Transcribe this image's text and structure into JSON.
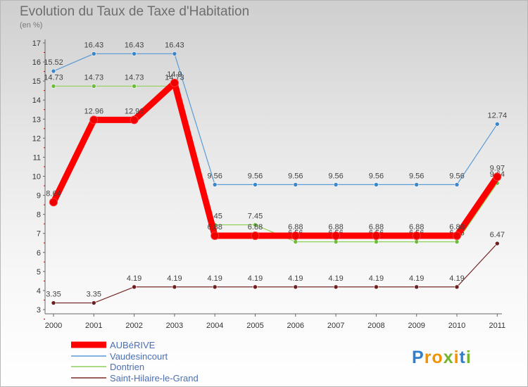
{
  "title": "Evolution du Taux de Taxe d'Habitation",
  "subtitle": "(en %)",
  "logo": [
    "P",
    "ro",
    "x",
    "i",
    "t",
    "i"
  ],
  "chart_data": {
    "type": "line",
    "title": "Evolution du Taux de Taxe d'Habitation",
    "subtitle": "(en %)",
    "x": [
      "2000",
      "2001",
      "2002",
      "2003",
      "2004",
      "2005",
      "2006",
      "2007",
      "2008",
      "2009",
      "2010",
      "2011"
    ],
    "ylim": [
      3,
      17
    ],
    "yticks": [
      "3",
      "4",
      "5",
      "6",
      "7",
      "8",
      "9",
      "10",
      "11",
      "12",
      "13",
      "14",
      "15",
      "16",
      "17"
    ],
    "grid": false,
    "legend_position": "bottom-left",
    "series": [
      {
        "name": "Vaudesincourt",
        "color": "#5a9bd5",
        "dot": "#3a86c8",
        "width": 1.2,
        "values": [
          15.52,
          16.43,
          16.43,
          16.43,
          9.56,
          9.56,
          9.56,
          9.56,
          9.56,
          9.56,
          9.56,
          12.74
        ],
        "labels": [
          "15.52",
          "16.43",
          "16.43",
          "16.43",
          "9.56",
          "9.56",
          "9.56",
          "9.56",
          "9.56",
          "9.56",
          "9.56",
          "12.74"
        ]
      },
      {
        "name": "Dontrien",
        "color": "#8fd15a",
        "dot": "#6dbb3a",
        "width": 1.2,
        "values": [
          14.73,
          14.73,
          14.73,
          14.73,
          7.45,
          7.45,
          6.56,
          6.56,
          6.56,
          6.56,
          6.56,
          9.64
        ],
        "labels": [
          "14.73",
          "14.73",
          "14.73",
          "14.73",
          "7.45",
          "7.45",
          "6.56",
          "6.56",
          "6.56",
          "6.56",
          "6.56",
          "9.64"
        ]
      },
      {
        "name": "Saint-Hilaire-le-Grand",
        "color": "#7a2a2a",
        "dot": "#6b1f1f",
        "width": 1.2,
        "values": [
          3.35,
          3.35,
          4.19,
          4.19,
          4.19,
          4.19,
          4.19,
          4.19,
          4.19,
          4.19,
          4.19,
          6.47
        ],
        "labels": [
          "3.35",
          "3.35",
          "4.19",
          "4.19",
          "4.19",
          "4.19",
          "4.19",
          "4.19",
          "4.19",
          "4.19",
          "4.19",
          "6.47"
        ]
      },
      {
        "name": "AUBéRIVE",
        "color": "#ff0000",
        "dot": "#ee0000",
        "width": 9,
        "values": [
          8.64,
          12.96,
          12.96,
          14.9,
          6.88,
          6.88,
          6.88,
          6.88,
          6.88,
          6.88,
          6.88,
          9.97
        ],
        "labels": [
          "8.64",
          "12.96",
          "12.96",
          "14.9",
          "6.88",
          "6.88",
          "6.88",
          "6.88",
          "6.88",
          "6.88",
          "6.88",
          "9.97"
        ]
      }
    ],
    "legend": [
      "AUBéRIVE",
      "Vaudesincourt",
      "Dontrien",
      "Saint-Hilaire-le-Grand"
    ]
  }
}
